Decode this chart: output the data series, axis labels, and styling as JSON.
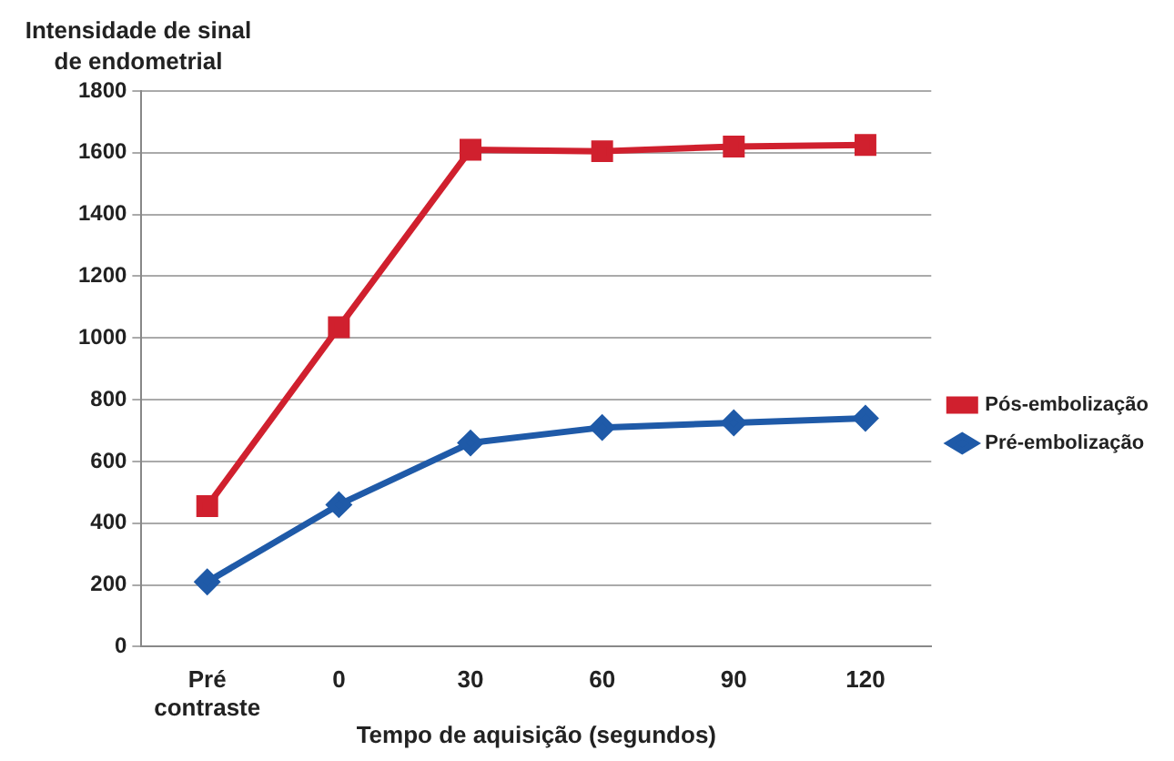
{
  "chart_data": {
    "type": "line",
    "ylabel": "Intensidade de sinal de endometrial",
    "xlabel": "Tempo de aquisição (segundos)",
    "categories": [
      "Pré contraste",
      "0",
      "30",
      "60",
      "90",
      "120"
    ],
    "series": [
      {
        "name": "Pós-embolização",
        "color": "#d0202e",
        "marker": "square",
        "values": [
          455,
          1035,
          1610,
          1605,
          1620,
          1625
        ]
      },
      {
        "name": "Pré-embolização",
        "color": "#1f5aa8",
        "marker": "diamond",
        "values": [
          210,
          460,
          660,
          710,
          725,
          740
        ]
      }
    ],
    "ylim": [
      0,
      1800
    ],
    "yticks": [
      0,
      200,
      400,
      600,
      800,
      1000,
      1200,
      1400,
      1600,
      1800
    ],
    "grid": "y",
    "legend": "right",
    "line_style": "solid"
  }
}
